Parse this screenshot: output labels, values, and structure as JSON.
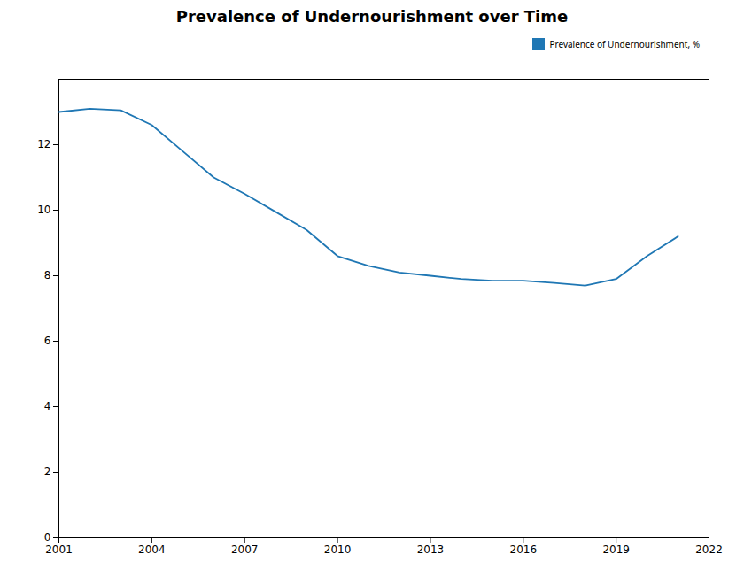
{
  "chart_data": {
    "type": "line",
    "title": "Prevalence of Undernourishment over Time",
    "x": [
      2001,
      2002,
      2003,
      2004,
      2005,
      2006,
      2007,
      2008,
      2009,
      2010,
      2011,
      2012,
      2013,
      2014,
      2015,
      2016,
      2017,
      2018,
      2019,
      2020,
      2021
    ],
    "series": [
      {
        "name": "Prevalence of Undernourishment, %",
        "color": "#1f77b4",
        "values": [
          13.0,
          13.1,
          13.05,
          12.6,
          11.8,
          11.0,
          10.5,
          9.95,
          9.4,
          8.6,
          8.3,
          8.1,
          8.0,
          7.9,
          7.85,
          7.85,
          7.78,
          7.7,
          7.9,
          8.6,
          9.2
        ]
      }
    ],
    "xlim": [
      2001,
      2022
    ],
    "xticks": [
      2001,
      2004,
      2007,
      2010,
      2013,
      2016,
      2019,
      2022
    ],
    "ylim": [
      0,
      14
    ],
    "yticks": [
      0,
      2,
      4,
      6,
      8,
      10,
      12
    ],
    "grid": false,
    "legend": "upper right"
  }
}
